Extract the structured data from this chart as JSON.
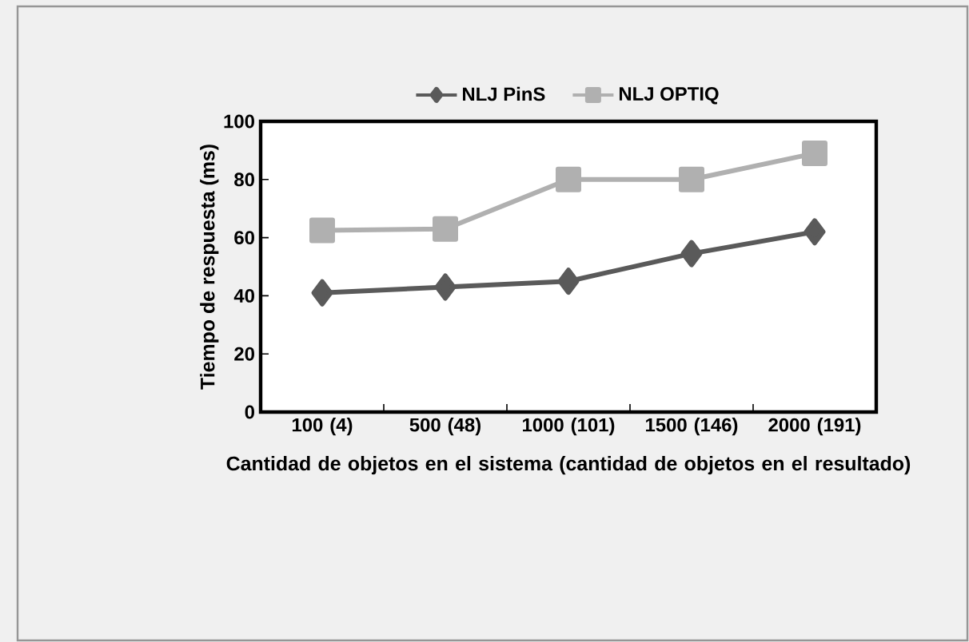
{
  "chart_data": {
    "type": "line",
    "xlabel": "Cantidad de objetos en el sistema (cantidad de objetos en el resultado)",
    "ylabel": "Tiempo de respuesta (ms)",
    "categories": [
      "100 (4)",
      "500 (48)",
      "1000 (101)",
      "1500 (146)",
      "2000 (191)"
    ],
    "series": [
      {
        "name": "NLJ PinS",
        "color": "#5a5a5a",
        "marker": "diamond",
        "values": [
          41,
          43,
          45,
          54.5,
          62
        ]
      },
      {
        "name": "NLJ OPTIQ",
        "color": "#b0b0b0",
        "marker": "square",
        "values": [
          62.5,
          63,
          80,
          80,
          89
        ]
      }
    ],
    "ylim": [
      0,
      100
    ],
    "yticks": [
      0,
      20,
      40,
      60,
      80,
      100
    ],
    "grid": false,
    "legend": "top",
    "line_style": "solid"
  }
}
